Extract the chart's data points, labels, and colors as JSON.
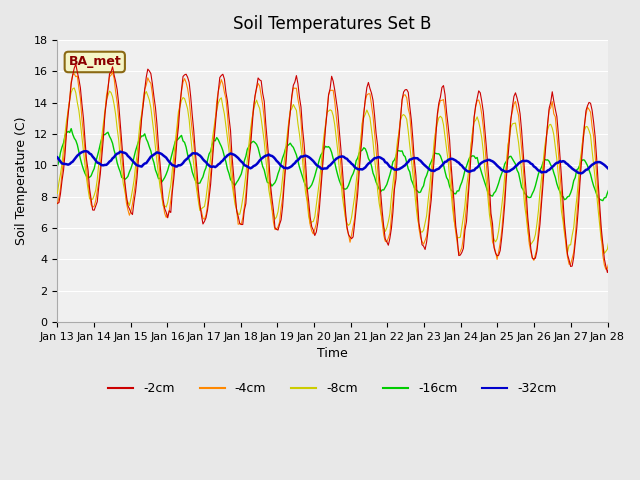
{
  "title": "Soil Temperatures Set B",
  "xlabel": "Time",
  "ylabel": "Soil Temperature (C)",
  "ylim": [
    0,
    18
  ],
  "yticks": [
    0,
    2,
    4,
    6,
    8,
    10,
    12,
    14,
    16,
    18
  ],
  "x_labels": [
    "Jan 13",
    "Jan 14",
    "Jan 15",
    "Jan 16",
    "Jan 17",
    "Jan 18",
    "Jan 19",
    "Jan 20",
    "Jan 21",
    "Jan 22",
    "Jan 23",
    "Jan 24",
    "Jan 25",
    "Jan 26",
    "Jan 27",
    "Jan 28"
  ],
  "colors": {
    "-2cm": "#cc0000",
    "-4cm": "#ff8800",
    "-8cm": "#cccc00",
    "-16cm": "#00cc00",
    "-32cm": "#0000cc"
  },
  "legend_label": "BA_met",
  "background_color": "#e8e8e8",
  "plot_bg_color": "#f0f0f0",
  "grid_color": "#ffffff"
}
